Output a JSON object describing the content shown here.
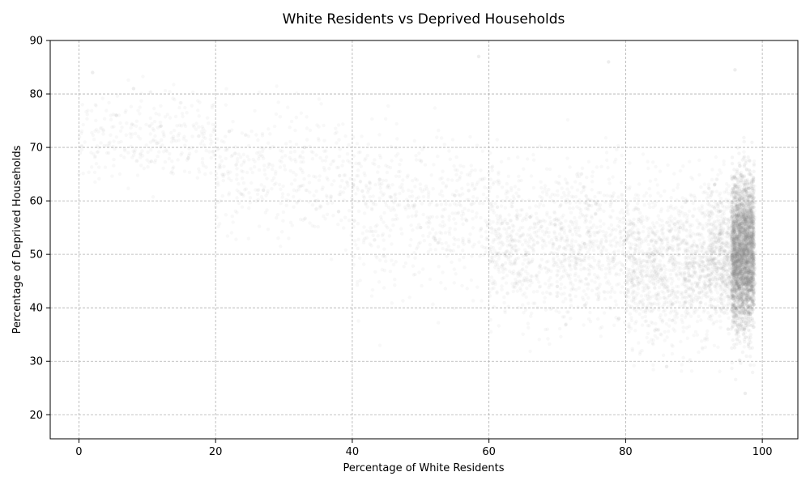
{
  "chart_data": {
    "type": "scatter",
    "title": "White Residents vs Deprived Households",
    "xlabel": "Percentage of White Residents",
    "ylabel": "Percentage of Deprived Households",
    "xlim": [
      -4.2,
      105.2
    ],
    "ylim": [
      15.5,
      90
    ],
    "xticks": [
      0,
      20,
      40,
      60,
      80,
      100
    ],
    "yticks": [
      20,
      30,
      40,
      50,
      60,
      70,
      80,
      90
    ],
    "grid": true,
    "grid_style": "dashed",
    "marker_color": "#888888",
    "marker_alpha": 0.06,
    "legend": "none",
    "density_regions": [
      {
        "x_range": [
          0,
          20
        ],
        "y_center": 72,
        "y_spread": 6,
        "relative_density": 0.08
      },
      {
        "x_range": [
          20,
          40
        ],
        "y_center": 65,
        "y_spread": 9,
        "relative_density": 0.1
      },
      {
        "x_range": [
          40,
          60
        ],
        "y_center": 58,
        "y_spread": 10,
        "relative_density": 0.14
      },
      {
        "x_range": [
          60,
          80
        ],
        "y_center": 52,
        "y_spread": 10,
        "relative_density": 0.3
      },
      {
        "x_range": [
          80,
          92
        ],
        "y_center": 48,
        "y_spread": 10,
        "relative_density": 0.55
      },
      {
        "x_range": [
          92,
          99
        ],
        "y_center": 50,
        "y_spread": 9,
        "relative_density": 1.0
      }
    ],
    "points": [
      [
        2.0,
        84.0
      ],
      [
        5.5,
        76.0
      ],
      [
        8.0,
        81.0
      ],
      [
        12.0,
        74.0
      ],
      [
        16.0,
        68.0
      ],
      [
        22.0,
        73.0
      ],
      [
        27.0,
        62.0
      ],
      [
        33.0,
        70.0
      ],
      [
        38.0,
        58.0
      ],
      [
        44.0,
        64.0
      ],
      [
        50.0,
        55.0
      ],
      [
        55.0,
        61.0
      ],
      [
        58.5,
        87.0
      ],
      [
        62.0,
        48.0
      ],
      [
        66.0,
        57.0
      ],
      [
        70.0,
        44.0
      ],
      [
        74.0,
        52.0
      ],
      [
        77.5,
        86.0
      ],
      [
        79.0,
        38.0
      ],
      [
        83.0,
        46.0
      ],
      [
        86.0,
        29.0
      ],
      [
        88.0,
        55.0
      ],
      [
        91.0,
        41.0
      ],
      [
        93.0,
        63.0
      ],
      [
        95.0,
        36.0
      ],
      [
        96.0,
        84.5
      ],
      [
        97.0,
        50.0
      ],
      [
        97.5,
        24.0
      ],
      [
        98.0,
        45.0
      ],
      [
        98.5,
        56.0
      ]
    ]
  }
}
